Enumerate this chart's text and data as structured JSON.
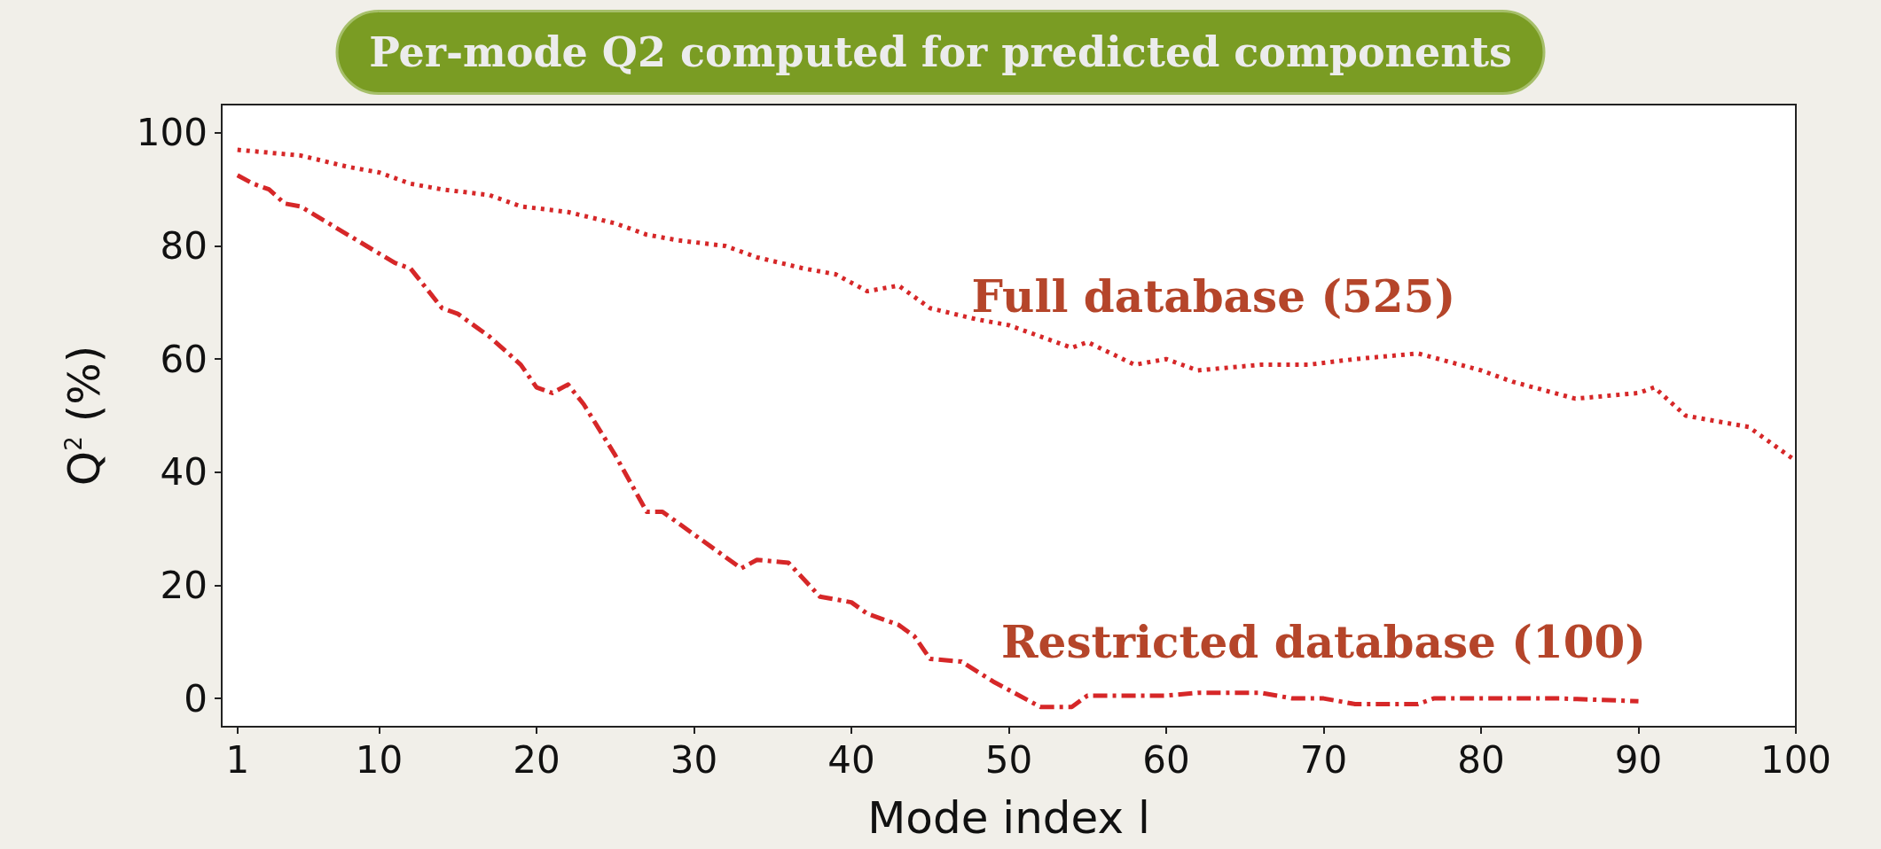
{
  "chart_data": {
    "type": "line",
    "title": "Per-mode Q2 computed for predicted components",
    "xlabel": "Mode index l",
    "ylabel": "Q$^{2}$ (%)",
    "xlim": [
      0,
      100
    ],
    "xticks": [
      1,
      10,
      20,
      30,
      40,
      50,
      60,
      70,
      80,
      90,
      100
    ],
    "ylim": [
      -5,
      105
    ],
    "yticks": [
      0,
      20,
      40,
      60,
      80,
      100
    ],
    "grid": false,
    "marker": "none",
    "series": [
      {
        "name": "Full database (525)",
        "color": "#d62728",
        "line_style": "dotted",
        "x": [
          1,
          5,
          8,
          10,
          12,
          14,
          17,
          19,
          22,
          25,
          27,
          29,
          32,
          34,
          37,
          39,
          41,
          43,
          45,
          48,
          50,
          52,
          54,
          55,
          58,
          60,
          62,
          66,
          69,
          72,
          76,
          80,
          82,
          86,
          90,
          91,
          93,
          97,
          100
        ],
        "values": [
          97,
          96,
          94,
          93,
          91,
          90,
          89,
          87,
          86,
          84,
          82,
          81,
          80,
          78,
          76,
          75,
          72,
          73,
          69,
          67,
          66,
          64,
          62,
          63,
          59,
          60,
          58,
          59,
          59,
          60,
          61,
          58,
          56,
          53,
          54,
          55,
          50,
          48,
          42
        ]
      },
      {
        "name": "Restricted database (100)",
        "color": "#d62728",
        "line_style": "dashed",
        "x": [
          1,
          2,
          3,
          4,
          5,
          8,
          11,
          12,
          14,
          15,
          17,
          19,
          20,
          21,
          22,
          23,
          25,
          26,
          27,
          28,
          30,
          32,
          33,
          34,
          36,
          38,
          40,
          41,
          43,
          44,
          45,
          47,
          49,
          50,
          52,
          54,
          55,
          60,
          62,
          66,
          68,
          70,
          72,
          74,
          76,
          77,
          80,
          85,
          90
        ],
        "values": [
          92.5,
          91,
          90,
          87.5,
          87,
          82,
          77,
          76,
          69,
          68,
          64,
          59,
          55,
          54,
          55.5,
          52,
          43,
          38,
          33,
          33,
          29,
          25,
          23,
          24.5,
          24,
          18,
          17,
          15,
          13,
          11,
          7,
          6.5,
          3,
          1.5,
          -1.5,
          -1.5,
          0.5,
          0.5,
          1,
          1,
          0,
          0,
          -1,
          -1,
          -1,
          0,
          0,
          0,
          -0.5
        ]
      }
    ]
  }
}
